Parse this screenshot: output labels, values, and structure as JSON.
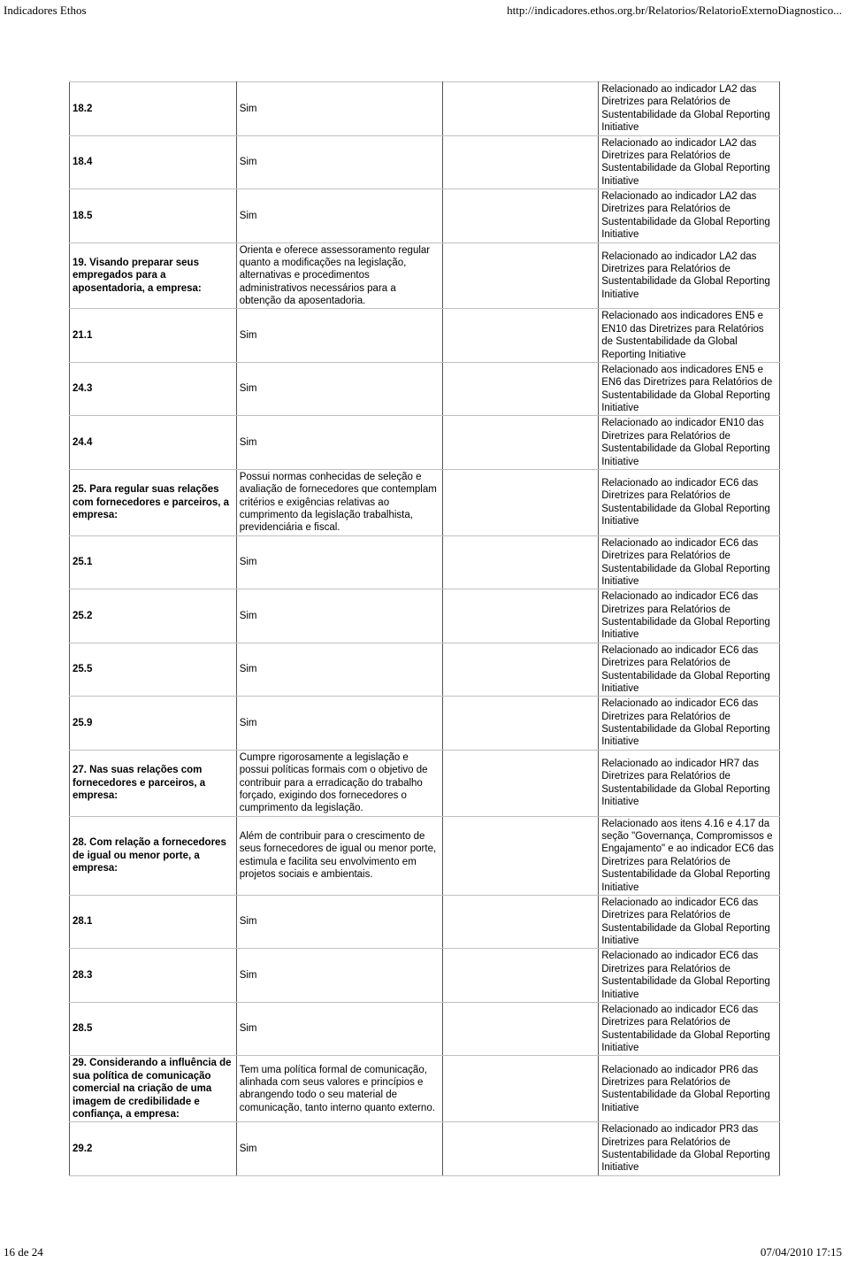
{
  "header": {
    "title": "Indicadores Ethos",
    "url": "http://indicadores.ethos.org.br/Relatorios/RelatorioExternoDiagnostico..."
  },
  "footer": {
    "page_label": "16 de 24",
    "timestamp": "07/04/2010 17:15"
  },
  "common": {
    "la2": "Relacionado ao indicador LA2 das Diretrizes para Relatórios de Sustentabilidade da Global Reporting Initiative",
    "ec6": "Relacionado ao indicador EC6 das Diretrizes para Relatórios de Sustentabilidade da Global Reporting Initiative"
  },
  "table": {
    "rows": [
      {
        "a": "18.2",
        "b": "Sim",
        "c": "",
        "d_ref": "common.la2"
      },
      {
        "a": "18.4",
        "b": "Sim",
        "c": "",
        "d_ref": "common.la2"
      },
      {
        "a": "18.5",
        "b": "Sim",
        "c": "",
        "d_ref": "common.la2"
      },
      {
        "a": "19. Visando preparar seus empregados para a aposentadoria, a empresa:",
        "b": "Orienta e oferece assessoramento regular quanto a modificações na legislação, alternativas e procedimentos administrativos necessários para a obtenção da aposentadoria.",
        "c": "",
        "d_ref": "common.la2"
      },
      {
        "a": "21.1",
        "b": "Sim",
        "c": "",
        "d": "Relacionado aos indicadores EN5 e EN10 das Diretrizes para Relatórios de Sustentabilidade da Global Reporting Initiative"
      },
      {
        "a": "24.3",
        "b": "Sim",
        "c": "",
        "d": "Relacionado aos indicadores EN5 e EN6 das Diretrizes para Relatórios de Sustentabilidade da Global Reporting Initiative"
      },
      {
        "a": "24.4",
        "b": "Sim",
        "c": "",
        "d": "Relacionado ao indicador EN10 das Diretrizes para Relatórios de Sustentabilidade da Global Reporting Initiative"
      },
      {
        "a": "25. Para regular suas relações com fornecedores e parceiros, a empresa:",
        "b": "Possui normas conhecidas de seleção e avaliação de fornecedores que contemplam critérios e exigências relativas ao cumprimento da legislação trabalhista, previdenciária e fiscal.",
        "c": "",
        "d_ref": "common.ec6"
      },
      {
        "a": "25.1",
        "b": "Sim",
        "c": "",
        "d_ref": "common.ec6"
      },
      {
        "a": "25.2",
        "b": "Sim",
        "c": "",
        "d_ref": "common.ec6"
      },
      {
        "a": "25.5",
        "b": "Sim",
        "c": "",
        "d_ref": "common.ec6"
      },
      {
        "a": "25.9",
        "b": "Sim",
        "c": "",
        "d_ref": "common.ec6"
      },
      {
        "a": "27. Nas suas relações com fornecedores e parceiros, a empresa:",
        "b": "Cumpre rigorosamente a legislação e possui políticas formais com o objetivo de contribuir para a erradicação do trabalho forçado, exigindo dos fornecedores o cumprimento da legislação.",
        "c": "",
        "d": "Relacionado ao indicador HR7 das Diretrizes para Relatórios de Sustentabilidade da Global Reporting Initiative"
      },
      {
        "a": "28. Com relação a fornecedores de igual ou menor porte, a empresa:",
        "b": "Além de contribuir para o crescimento de seus fornecedores de igual ou menor porte, estimula e facilita seu envolvimento em projetos sociais e ambientais.",
        "c": "",
        "d": "Relacionado aos itens 4.16 e 4.17 da seção \"Governança, Compromissos e Engajamento\" e ao indicador EC6 das Diretrizes para Relatórios de Sustentabilidade da Global Reporting Initiative"
      },
      {
        "a": "28.1",
        "b": "Sim",
        "c": "",
        "d_ref": "common.ec6"
      },
      {
        "a": "28.3",
        "b": "Sim",
        "c": "",
        "d_ref": "common.ec6"
      },
      {
        "a": "28.5",
        "b": "Sim",
        "c": "",
        "d_ref": "common.ec6"
      },
      {
        "a": "29. Considerando a influência de sua política de comunicação comercial na criação de uma imagem de credibilidade e confiança, a empresa:",
        "b": "Tem uma política formal de comunicação, alinhada com seus valores e princípios e abrangendo todo o seu material de comunicação, tanto interno quanto externo.",
        "c": "",
        "d": "Relacionado ao indicador PR6 das Diretrizes para Relatórios de Sustentabilidade da Global Reporting Initiative"
      },
      {
        "a": "29.2",
        "b": "Sim",
        "c": "",
        "d": "Relacionado ao indicador PR3 das Diretrizes para Relatórios de Sustentabilidade da Global Reporting Initiative"
      }
    ]
  }
}
